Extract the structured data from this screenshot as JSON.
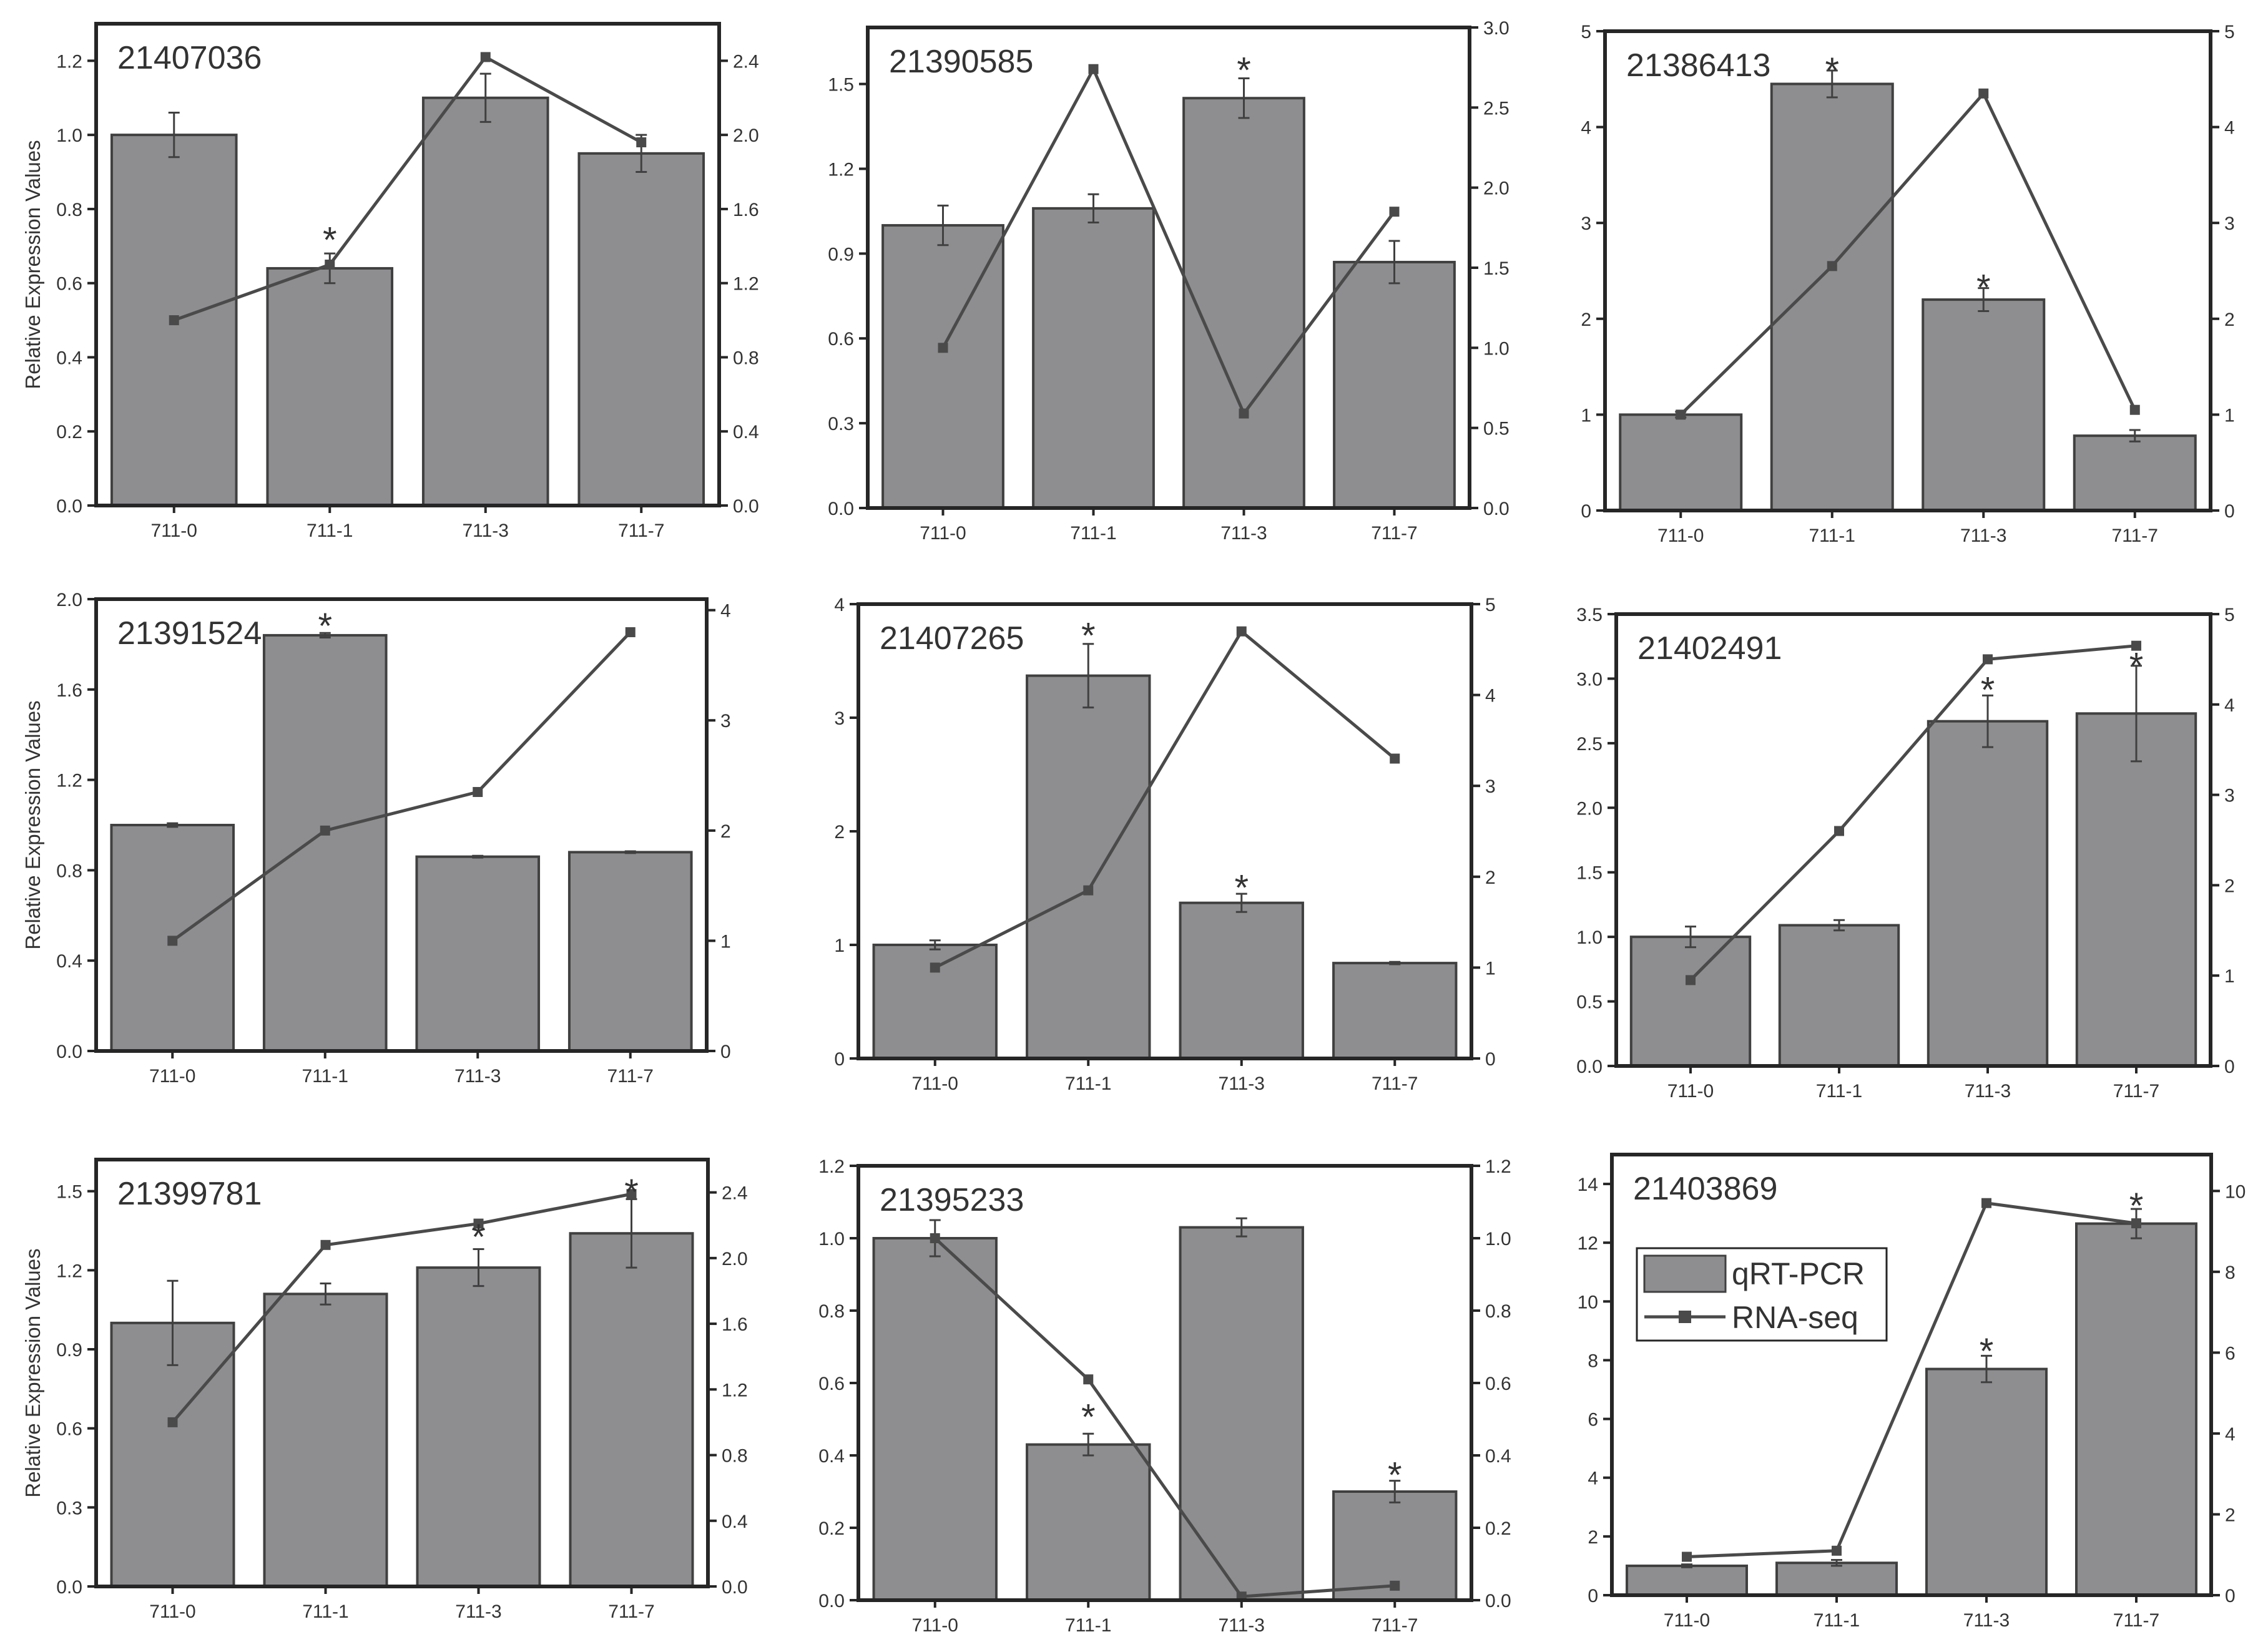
{
  "figure": {
    "ylabel": "Relative Expression Values",
    "legend": {
      "bar_label": "qRT-PCR",
      "line_label": "RNA-seq"
    },
    "colors": {
      "bar_fill": "#8e8e91",
      "bar_stroke": "#404040",
      "line": "#4a4a4a",
      "axis": "#262626",
      "text": "#333333"
    }
  },
  "chart_data": [
    {
      "type": "bar+line",
      "title": "21407036",
      "categories": [
        "711-0",
        "711-1",
        "711-3",
        "711-7"
      ],
      "ylabel": "Relative Expression Values",
      "left": {
        "range": [
          0,
          1.3
        ],
        "ticks": [
          0.0,
          0.2,
          0.4,
          0.6,
          0.8,
          1.0,
          1.2
        ],
        "labels": [
          "0.0",
          "0.2",
          "0.4",
          "0.6",
          "0.8",
          "1.0",
          "1.2"
        ]
      },
      "right": {
        "range": [
          0,
          2.6
        ],
        "ticks": [
          0.0,
          0.4,
          0.8,
          1.2,
          1.6,
          2.0,
          2.4
        ],
        "labels": [
          "0.0",
          "0.4",
          "0.8",
          "1.2",
          "1.6",
          "2.0",
          "2.4"
        ]
      },
      "series": [
        {
          "name": "qRT-PCR",
          "values": [
            1.0,
            0.64,
            1.1,
            0.95
          ],
          "errors": [
            0.06,
            0.04,
            0.065,
            0.05
          ]
        },
        {
          "name": "RNA-seq",
          "values": [
            1.0,
            1.3,
            2.42,
            1.96
          ]
        }
      ],
      "annotations": [
        {
          "text": "*",
          "category": "711-1",
          "y": 0.74
        }
      ]
    },
    {
      "type": "bar+line",
      "title": "21390585",
      "categories": [
        "711-0",
        "711-1",
        "711-3",
        "711-7"
      ],
      "ylabel": "",
      "left": {
        "range": [
          0,
          1.7
        ],
        "ticks": [
          0.0,
          0.3,
          0.6,
          0.9,
          1.2,
          1.5
        ],
        "labels": [
          "0.0",
          "0.3",
          "0.6",
          "0.9",
          "1.2",
          "1.5"
        ]
      },
      "right": {
        "range": [
          0,
          3.0
        ],
        "ticks": [
          0.0,
          0.5,
          1.0,
          1.5,
          2.0,
          2.5,
          3.0
        ],
        "labels": [
          "0.0",
          "0.5",
          "1.0",
          "1.5",
          "2.0",
          "2.5",
          "3.0"
        ]
      },
      "series": [
        {
          "name": "qRT-PCR",
          "values": [
            1.0,
            1.06,
            1.45,
            0.87
          ],
          "errors": [
            0.07,
            0.05,
            0.07,
            0.075
          ]
        },
        {
          "name": "RNA-seq",
          "values": [
            1.0,
            2.74,
            0.59,
            1.85
          ]
        }
      ],
      "annotations": [
        {
          "text": "*",
          "category": "711-3",
          "y": 1.58
        }
      ]
    },
    {
      "type": "bar+line",
      "title": "21386413",
      "categories": [
        "711-0",
        "711-1",
        "711-3",
        "711-7"
      ],
      "ylabel": "",
      "left": {
        "range": [
          0,
          5
        ],
        "ticks": [
          0,
          1,
          2,
          3,
          4,
          5
        ],
        "labels": [
          "0",
          "1",
          "2",
          "3",
          "4",
          "5"
        ]
      },
      "right": {
        "range": [
          0,
          5
        ],
        "ticks": [
          0,
          1,
          2,
          3,
          4,
          5
        ],
        "labels": [
          "0",
          "1",
          "2",
          "3",
          "4",
          "5"
        ]
      },
      "series": [
        {
          "name": "qRT-PCR",
          "values": [
            1.0,
            4.45,
            2.2,
            0.78
          ],
          "errors": [
            0.03,
            0.14,
            0.12,
            0.06
          ]
        },
        {
          "name": "RNA-seq",
          "values": [
            1.0,
            2.55,
            4.35,
            1.05
          ]
        }
      ],
      "annotations": [
        {
          "text": "*",
          "category": "711-1",
          "y": 4.68
        },
        {
          "text": "*",
          "category": "711-3",
          "y": 2.42
        }
      ]
    },
    {
      "type": "bar+line",
      "title": "21391524",
      "categories": [
        "711-0",
        "711-1",
        "711-3",
        "711-7"
      ],
      "ylabel": "Relative Expression Values",
      "left": {
        "range": [
          0,
          2.0
        ],
        "ticks": [
          0.0,
          0.4,
          0.8,
          1.2,
          1.6,
          2.0
        ],
        "labels": [
          "0.0",
          "0.4",
          "0.8",
          "1.2",
          "1.6",
          "2.0"
        ]
      },
      "right": {
        "range": [
          0,
          4.1
        ],
        "ticks": [
          0,
          1,
          2,
          3,
          4
        ],
        "labels": [
          "0",
          "1",
          "2",
          "3",
          "4"
        ]
      },
      "series": [
        {
          "name": "qRT-PCR",
          "values": [
            1.0,
            1.84,
            0.86,
            0.88
          ],
          "errors": [
            0.008,
            0.01,
            0.004,
            0.004
          ]
        },
        {
          "name": "RNA-seq",
          "values": [
            1.0,
            2.0,
            2.35,
            3.8
          ]
        }
      ],
      "annotations": [
        {
          "text": "*",
          "category": "711-1",
          "y": 1.92
        }
      ]
    },
    {
      "type": "bar+line",
      "title": "21407265",
      "categories": [
        "711-0",
        "711-1",
        "711-3",
        "711-7"
      ],
      "ylabel": "",
      "left": {
        "range": [
          0,
          4
        ],
        "ticks": [
          0,
          1,
          2,
          3,
          4
        ],
        "labels": [
          "0",
          "1",
          "2",
          "3",
          "4"
        ]
      },
      "right": {
        "range": [
          0,
          5
        ],
        "ticks": [
          0,
          1,
          2,
          3,
          4,
          5
        ],
        "labels": [
          "0",
          "1",
          "2",
          "3",
          "4",
          "5"
        ]
      },
      "series": [
        {
          "name": "qRT-PCR",
          "values": [
            1.0,
            3.37,
            1.37,
            0.84
          ],
          "errors": [
            0.04,
            0.28,
            0.08,
            0.01
          ]
        },
        {
          "name": "RNA-seq",
          "values": [
            1.0,
            1.85,
            4.7,
            3.3
          ]
        }
      ],
      "annotations": [
        {
          "text": "*",
          "category": "711-1",
          "y": 3.8
        },
        {
          "text": "*",
          "category": "711-3",
          "y": 1.58
        }
      ]
    },
    {
      "type": "bar+line",
      "title": "21402491",
      "categories": [
        "711-0",
        "711-1",
        "711-3",
        "711-7"
      ],
      "ylabel": "",
      "left": {
        "range": [
          0,
          3.5
        ],
        "ticks": [
          0.0,
          0.5,
          1.0,
          1.5,
          2.0,
          2.5,
          3.0,
          3.5
        ],
        "labels": [
          "0.0",
          "0.5",
          "1.0",
          "1.5",
          "2.0",
          "2.5",
          "3.0",
          "3.5"
        ]
      },
      "right": {
        "range": [
          0,
          5
        ],
        "ticks": [
          0,
          1,
          2,
          3,
          4,
          5
        ],
        "labels": [
          "0",
          "1",
          "2",
          "3",
          "4",
          "5"
        ]
      },
      "series": [
        {
          "name": "qRT-PCR",
          "values": [
            1.0,
            1.09,
            2.67,
            2.73
          ],
          "errors": [
            0.08,
            0.04,
            0.2,
            0.37
          ]
        },
        {
          "name": "RNA-seq",
          "values": [
            0.95,
            2.6,
            4.5,
            4.65
          ]
        }
      ],
      "annotations": [
        {
          "text": "*",
          "category": "711-3",
          "y": 2.98
        },
        {
          "text": "*",
          "category": "711-7",
          "y": 3.17
        }
      ]
    },
    {
      "type": "bar+line",
      "title": "21399781",
      "categories": [
        "711-0",
        "711-1",
        "711-3",
        "711-7"
      ],
      "ylabel": "Relative Expression Values",
      "left": {
        "range": [
          0,
          1.62
        ],
        "ticks": [
          0.0,
          0.3,
          0.6,
          0.9,
          1.2,
          1.5
        ],
        "labels": [
          "0.0",
          "0.3",
          "0.6",
          "0.9",
          "1.2",
          "1.5"
        ]
      },
      "right": {
        "range": [
          0,
          2.6
        ],
        "ticks": [
          0.0,
          0.4,
          0.8,
          1.2,
          1.6,
          2.0,
          2.4
        ],
        "labels": [
          "0.0",
          "0.4",
          "0.8",
          "1.2",
          "1.6",
          "2.0",
          "2.4"
        ]
      },
      "series": [
        {
          "name": "qRT-PCR",
          "values": [
            1.0,
            1.11,
            1.21,
            1.34
          ],
          "errors": [
            0.16,
            0.04,
            0.07,
            0.13
          ]
        },
        {
          "name": "RNA-seq",
          "values": [
            1.0,
            2.08,
            2.21,
            2.39
          ]
        }
      ],
      "annotations": [
        {
          "text": "*",
          "category": "711-3",
          "y": 1.36
        },
        {
          "text": "*",
          "category": "711-7",
          "y": 1.53
        }
      ]
    },
    {
      "type": "bar+line",
      "title": "21395233",
      "categories": [
        "711-0",
        "711-1",
        "711-3",
        "711-7"
      ],
      "ylabel": "",
      "left": {
        "range": [
          0,
          1.2
        ],
        "ticks": [
          0.0,
          0.2,
          0.4,
          0.6,
          0.8,
          1.0,
          1.2
        ],
        "labels": [
          "0.0",
          "0.2",
          "0.4",
          "0.6",
          "0.8",
          "1.0",
          "1.2"
        ]
      },
      "right": {
        "range": [
          0,
          1.2
        ],
        "ticks": [
          0.0,
          0.2,
          0.4,
          0.6,
          0.8,
          1.0,
          1.2
        ],
        "labels": [
          "0.0",
          "0.2",
          "0.4",
          "0.6",
          "0.8",
          "1.0",
          "1.2"
        ]
      },
      "series": [
        {
          "name": "qRT-PCR",
          "values": [
            1.0,
            0.43,
            1.03,
            0.3
          ],
          "errors": [
            0.05,
            0.03,
            0.025,
            0.03
          ]
        },
        {
          "name": "RNA-seq",
          "values": [
            1.0,
            0.61,
            0.01,
            0.04
          ]
        }
      ],
      "annotations": [
        {
          "text": "*",
          "category": "711-1",
          "y": 0.53
        },
        {
          "text": "*",
          "category": "711-7",
          "y": 0.37
        }
      ]
    },
    {
      "type": "bar+line",
      "title": "21403869",
      "categories": [
        "711-0",
        "711-1",
        "711-3",
        "711-7"
      ],
      "ylabel": "",
      "legend": "top-left",
      "left": {
        "range": [
          0,
          15
        ],
        "ticks": [
          0,
          2,
          4,
          6,
          8,
          10,
          12,
          14
        ],
        "labels": [
          "0",
          "2",
          "4",
          "6",
          "8",
          "10",
          "12",
          "14"
        ]
      },
      "right": {
        "range": [
          0,
          10.9
        ],
        "ticks": [
          0,
          2,
          4,
          6,
          8,
          10
        ],
        "labels": [
          "0",
          "2",
          "4",
          "6",
          "8",
          "10"
        ]
      },
      "series": [
        {
          "name": "qRT-PCR",
          "values": [
            1.0,
            1.1,
            7.7,
            12.65
          ],
          "errors": [
            0.05,
            0.1,
            0.45,
            0.5
          ]
        },
        {
          "name": "RNA-seq",
          "values": [
            0.95,
            1.1,
            9.7,
            9.2
          ]
        }
      ],
      "annotations": [
        {
          "text": "*",
          "category": "711-3",
          "y": 8.6
        },
        {
          "text": "*",
          "category": "711-7",
          "y": 13.55
        }
      ]
    }
  ]
}
